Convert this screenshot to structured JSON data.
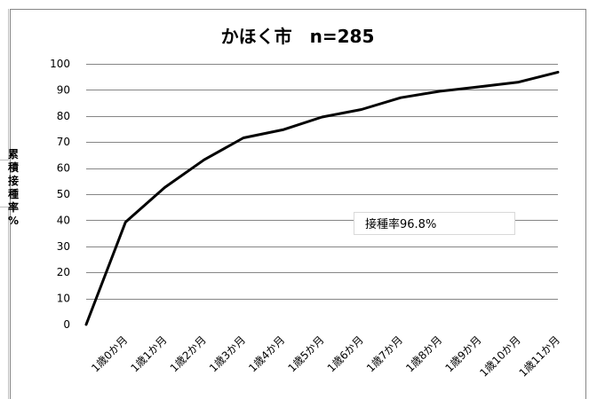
{
  "chart_data": {
    "type": "line",
    "title": "かほく市　n=285",
    "ylabel": "累積接種率%",
    "xlabel": "",
    "categories": [
      "1歳0か月",
      "1歳1か月",
      "1歳2か月",
      "1歳3か月",
      "1歳4か月",
      "1歳5か月",
      "1歳6か月",
      "1歳7か月",
      "1歳8か月",
      "1歳9か月",
      "1歳10か月",
      "1歳11か月"
    ],
    "x_values": [
      0,
      1,
      2,
      3,
      4,
      5,
      6,
      7,
      8,
      9,
      10,
      11,
      12
    ],
    "values": [
      0,
      39.3,
      52.6,
      63.2,
      71.6,
      74.7,
      79.6,
      82.5,
      87.0,
      89.5,
      91.2,
      93.0,
      96.8
    ],
    "ylim": [
      0,
      100
    ],
    "yticks": [
      0,
      10,
      20,
      30,
      40,
      50,
      60,
      70,
      80,
      90,
      100
    ],
    "grid": true,
    "line_color": "#000000",
    "grid_color": "#868686",
    "annotation": "接種率96.8%"
  }
}
